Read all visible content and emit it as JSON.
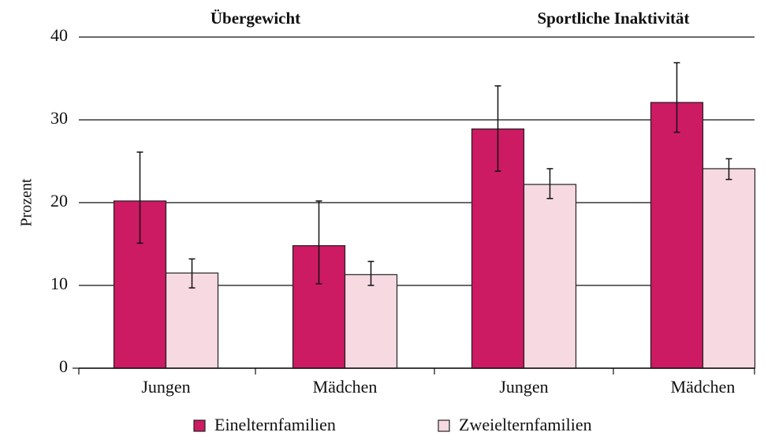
{
  "chart_data": {
    "type": "bar",
    "groups": [
      "Übergewicht",
      "Sportliche Inaktivität"
    ],
    "categories": [
      "Jungen",
      "Mädchen",
      "Jungen",
      "Mädchen"
    ],
    "ylabel": "Prozent",
    "series": [
      {
        "name": "Einelternfamilien",
        "color": "#cc1a63",
        "values": [
          20.2,
          14.8,
          28.9,
          32.1
        ],
        "ci": [
          [
            15.1,
            26.1
          ],
          [
            10.2,
            20.2
          ],
          [
            23.8,
            34.1
          ],
          [
            28.5,
            36.9
          ]
        ]
      },
      {
        "name": "Zweielternfamilien",
        "color": "#f6d9e1",
        "values": [
          11.5,
          11.3,
          22.2,
          24.1
        ],
        "ci": [
          [
            9.7,
            13.2
          ],
          [
            10.0,
            12.9
          ],
          [
            20.5,
            24.1
          ],
          [
            22.8,
            25.3
          ]
        ]
      }
    ],
    "ylim": [
      0,
      40
    ],
    "yticks": [
      0,
      10,
      20,
      30,
      40
    ],
    "grid": true
  }
}
